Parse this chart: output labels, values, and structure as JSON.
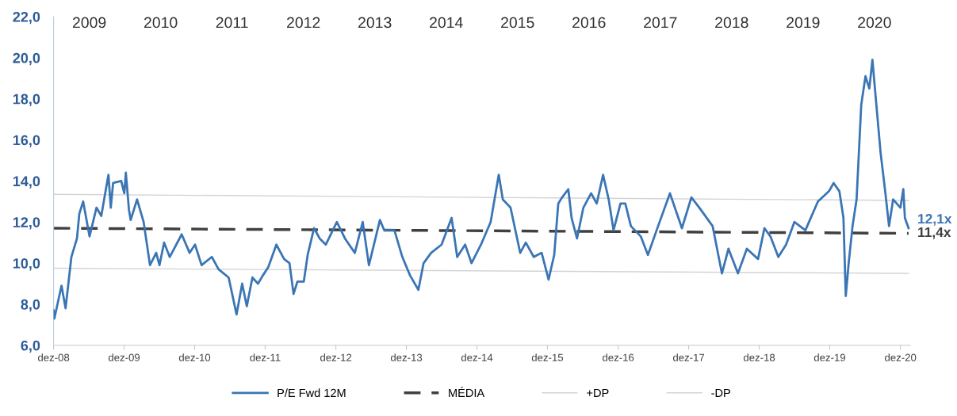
{
  "chart_data": {
    "type": "line",
    "x": [
      "2008-12-01",
      "2008-12-05",
      "2009-01-11",
      "2009-02-01",
      "2009-03-03",
      "2009-04-01",
      "2009-04-13",
      "2009-05-03",
      "2009-06-05",
      "2009-07-11",
      "2009-08-05",
      "2009-08-25",
      "2009-09-11",
      "2009-09-23",
      "2009-10-05",
      "2009-11-16",
      "2009-12-02",
      "2009-12-10",
      "2009-12-26",
      "2010-01-04",
      "2010-02-06",
      "2010-03-12",
      "2010-04-14",
      "2010-05-16",
      "2010-06-02",
      "2010-06-26",
      "2010-07-25",
      "2010-09-25",
      "2010-11-05",
      "2010-12-03",
      "2011-01-06",
      "2011-02-28",
      "2011-04-04",
      "2011-05-26",
      "2011-07-06",
      "2011-08-04",
      "2011-08-28",
      "2011-09-26",
      "2011-10-25",
      "2011-11-19",
      "2011-12-17",
      "2012-01-28",
      "2012-03-08",
      "2012-04-05",
      "2012-04-26",
      "2012-05-16",
      "2012-06-18",
      "2012-07-08",
      "2012-08-10",
      "2012-09-08",
      "2012-10-10",
      "2012-12-06",
      "2013-01-17",
      "2013-03-09",
      "2013-04-19",
      "2013-05-21",
      "2013-07-17",
      "2013-08-08",
      "2013-09-30",
      "2013-11-10",
      "2013-12-20",
      "2014-02-01",
      "2014-02-28",
      "2014-04-08",
      "2014-06-01",
      "2014-06-21",
      "2014-07-23",
      "2014-08-21",
      "2014-10-01",
      "2014-11-03",
      "2014-12-22",
      "2015-02-10",
      "2015-03-24",
      "2015-04-14",
      "2015-05-24",
      "2015-07-13",
      "2015-08-11",
      "2015-09-21",
      "2015-11-01",
      "2015-12-07",
      "2016-01-05",
      "2016-01-26",
      "2016-02-15",
      "2016-03-18",
      "2016-04-04",
      "2016-05-02",
      "2016-06-04",
      "2016-07-14",
      "2016-08-12",
      "2016-09-14",
      "2016-10-13",
      "2016-11-07",
      "2016-12-13",
      "2017-01-07",
      "2017-02-05",
      "2017-03-28",
      "2017-05-04",
      "2017-06-18",
      "2017-08-26",
      "2017-10-27",
      "2017-12-15",
      "2018-01-25",
      "2018-04-04",
      "2018-05-22",
      "2018-06-25",
      "2018-08-13",
      "2018-09-28",
      "2018-11-25",
      "2018-12-28",
      "2019-01-28",
      "2019-03-10",
      "2019-04-19",
      "2019-06-01",
      "2019-07-28",
      "2019-10-01",
      "2019-11-27",
      "2019-12-21",
      "2020-01-20",
      "2020-02-10",
      "2020-02-22",
      "2020-03-08",
      "2020-03-28",
      "2020-04-18",
      "2020-05-12",
      "2020-06-03",
      "2020-06-23",
      "2020-07-09",
      "2020-07-21",
      "2020-08-20",
      "2020-09-13",
      "2020-10-03",
      "2020-10-24",
      "2020-12-01",
      "2020-12-16",
      "2020-12-24",
      "2021-01-12"
    ],
    "series": [
      {
        "name": "P/E Fwd 12M",
        "color": "#3a75b5",
        "values": [
          7.7,
          7.3,
          8.9,
          7.8,
          10.3,
          11.2,
          12.4,
          13.0,
          11.3,
          12.7,
          12.3,
          13.4,
          14.3,
          12.7,
          13.9,
          14.0,
          13.4,
          14.4,
          12.6,
          12.1,
          13.1,
          12.0,
          9.9,
          10.5,
          9.9,
          11.0,
          10.3,
          11.4,
          10.5,
          10.9,
          9.9,
          10.3,
          9.7,
          9.3,
          7.5,
          9.0,
          7.9,
          9.3,
          9.0,
          9.4,
          9.8,
          10.9,
          10.2,
          10.0,
          8.5,
          9.1,
          9.1,
          10.4,
          11.7,
          11.2,
          10.9,
          12.0,
          11.2,
          10.5,
          12.0,
          9.9,
          12.1,
          11.6,
          11.6,
          10.3,
          9.4,
          8.7,
          10.0,
          10.5,
          10.9,
          11.4,
          12.2,
          10.3,
          10.9,
          10.0,
          10.9,
          12.0,
          14.3,
          13.1,
          12.7,
          10.5,
          11.0,
          10.3,
          10.5,
          9.2,
          10.4,
          12.9,
          13.2,
          13.6,
          12.2,
          11.2,
          12.7,
          13.4,
          12.9,
          14.3,
          13.1,
          11.6,
          12.9,
          12.9,
          11.8,
          11.3,
          10.4,
          11.6,
          13.4,
          11.7,
          13.2,
          12.7,
          11.8,
          9.5,
          10.7,
          9.5,
          10.7,
          10.2,
          11.7,
          11.3,
          10.3,
          10.9,
          12.0,
          11.6,
          13.0,
          13.5,
          13.9,
          13.5,
          12.2,
          8.4,
          10.0,
          11.8,
          13.1,
          17.7,
          19.1,
          18.5,
          19.9,
          18.6,
          15.4,
          13.5,
          11.8,
          13.1,
          12.7,
          13.6,
          12.2,
          11.7
        ]
      },
      {
        "name": "MÉDIA",
        "color": "#404040",
        "line_style": "dashed",
        "x": [
          "2008-12-01",
          "2021-01-12"
        ],
        "values": [
          11.7,
          11.45
        ]
      },
      {
        "name": "+DP",
        "color": "#d4d4d4",
        "x": [
          "2008-12-01",
          "2021-01-12"
        ],
        "values": [
          13.35,
          13.05
        ]
      },
      {
        "name": "-DP",
        "color": "#d4d4d4",
        "x": [
          "2008-12-01",
          "2021-01-12"
        ],
        "values": [
          9.75,
          9.5
        ]
      }
    ],
    "xlim": [
      "2008-12-01",
      "2021-01-20"
    ],
    "xticks": [
      {
        "value": "2008-12-01",
        "label": "dez-08"
      },
      {
        "value": "2009-12-01",
        "label": "dez-09"
      },
      {
        "value": "2010-12-01",
        "label": "dez-10"
      },
      {
        "value": "2011-12-01",
        "label": "dez-11"
      },
      {
        "value": "2012-12-01",
        "label": "dez-12"
      },
      {
        "value": "2013-12-01",
        "label": "dez-13"
      },
      {
        "value": "2014-12-01",
        "label": "dez-14"
      },
      {
        "value": "2015-12-01",
        "label": "dez-15"
      },
      {
        "value": "2016-12-01",
        "label": "dez-16"
      },
      {
        "value": "2017-12-01",
        "label": "dez-17"
      },
      {
        "value": "2018-12-01",
        "label": "dez-18"
      },
      {
        "value": "2019-12-01",
        "label": "dez-19"
      },
      {
        "value": "2020-12-01",
        "label": "dez-20"
      }
    ],
    "ylim": [
      6,
      22
    ],
    "yticks": [
      {
        "value": 6,
        "label": "6,0"
      },
      {
        "value": 8,
        "label": "8,0"
      },
      {
        "value": 10,
        "label": "10,0"
      },
      {
        "value": 12,
        "label": "12,0"
      },
      {
        "value": 14,
        "label": "14,0"
      },
      {
        "value": 16,
        "label": "16,0"
      },
      {
        "value": 18,
        "label": "18,0"
      },
      {
        "value": 20,
        "label": "20,0"
      },
      {
        "value": 22,
        "label": "22,0"
      }
    ],
    "annotations": [
      "2009",
      "2010",
      "2011",
      "2012",
      "2013",
      "2014",
      "2015",
      "2016",
      "2017",
      "2018",
      "2019",
      "2020",
      {
        "text": "12,1x",
        "x": "2021-01-12",
        "y": 12.1
      },
      {
        "text": "11,4x",
        "x": "2021-01-12",
        "y": 11.45
      }
    ],
    "grid": false,
    "legend": "bottom",
    "marker": "none",
    "line_style": "solid"
  }
}
